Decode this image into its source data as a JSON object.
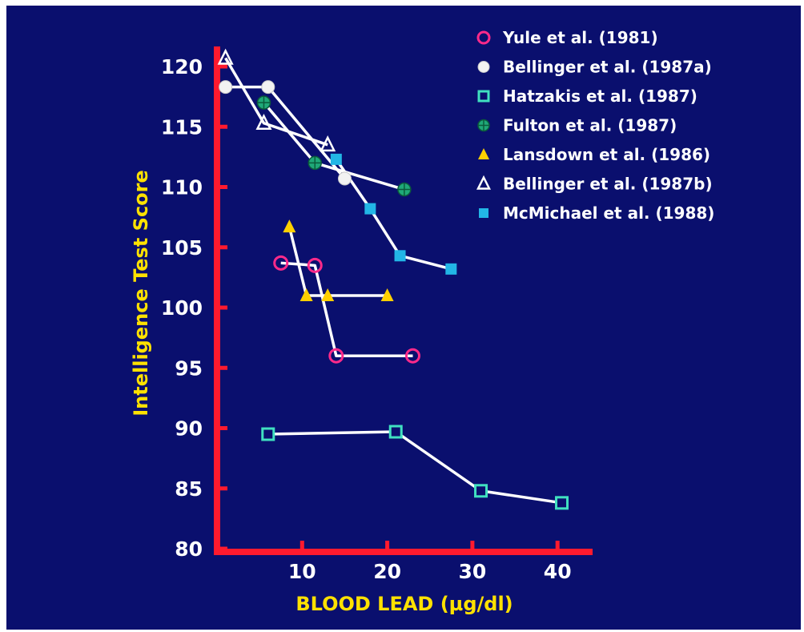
{
  "chart_data": {
    "type": "line",
    "xlabel": "BLOOD LEAD (µg/dl)",
    "ylabel": "Intelligence Test Score",
    "xlim": [
      0,
      45
    ],
    "ylim": [
      80,
      122
    ],
    "xticks": [
      10,
      20,
      30,
      40
    ],
    "yticks": [
      80,
      85,
      90,
      95,
      100,
      105,
      110,
      115,
      120
    ],
    "grid": false,
    "legend_position": "top-right",
    "colors": {
      "background": "#0a0f6e",
      "axis": "#ff1a2e",
      "tick_labels": "#ffffff",
      "axis_titles": "#ffe100",
      "lines": "#ffffff"
    },
    "series": [
      {
        "name": "Yule et al. (1981)",
        "marker": "circle-open",
        "color": "#ff2a8a",
        "x": [
          7.5,
          11.5,
          14,
          23
        ],
        "y": [
          103.7,
          103.5,
          96,
          96
        ]
      },
      {
        "name": "Bellinger et al. (1987a)",
        "marker": "circle-filled",
        "color": "#f2f2f2",
        "x": [
          1,
          6,
          15
        ],
        "y": [
          118.3,
          118.3,
          110.7
        ]
      },
      {
        "name": "Hatzakis et al. (1987)",
        "marker": "square-open",
        "color": "#40e0c0",
        "x": [
          6,
          21,
          31,
          40.5
        ],
        "y": [
          89.5,
          89.7,
          84.8,
          83.8
        ]
      },
      {
        "name": "Fulton et al. (1987)",
        "marker": "circle-grid",
        "color": "#1fa878",
        "x": [
          5.5,
          11.5,
          22
        ],
        "y": [
          117,
          112,
          109.8
        ]
      },
      {
        "name": "Lansdown et al. (1986)",
        "marker": "triangle-filled",
        "color": "#ffd000",
        "x": [
          8.5,
          10.5,
          13,
          20
        ],
        "y": [
          106.7,
          101,
          101,
          101
        ]
      },
      {
        "name": "Bellinger et al. (1987b)",
        "marker": "triangle-open",
        "color": "#ffffff",
        "x": [
          1,
          5.5,
          13
        ],
        "y": [
          120.7,
          115.3,
          113.5
        ]
      },
      {
        "name": "McMichael et al. (1988)",
        "marker": "square-filled",
        "color": "#22b6e6",
        "x": [
          14,
          18,
          21.5,
          27.5
        ],
        "y": [
          112.3,
          108.2,
          104.3,
          103.2
        ]
      }
    ]
  }
}
